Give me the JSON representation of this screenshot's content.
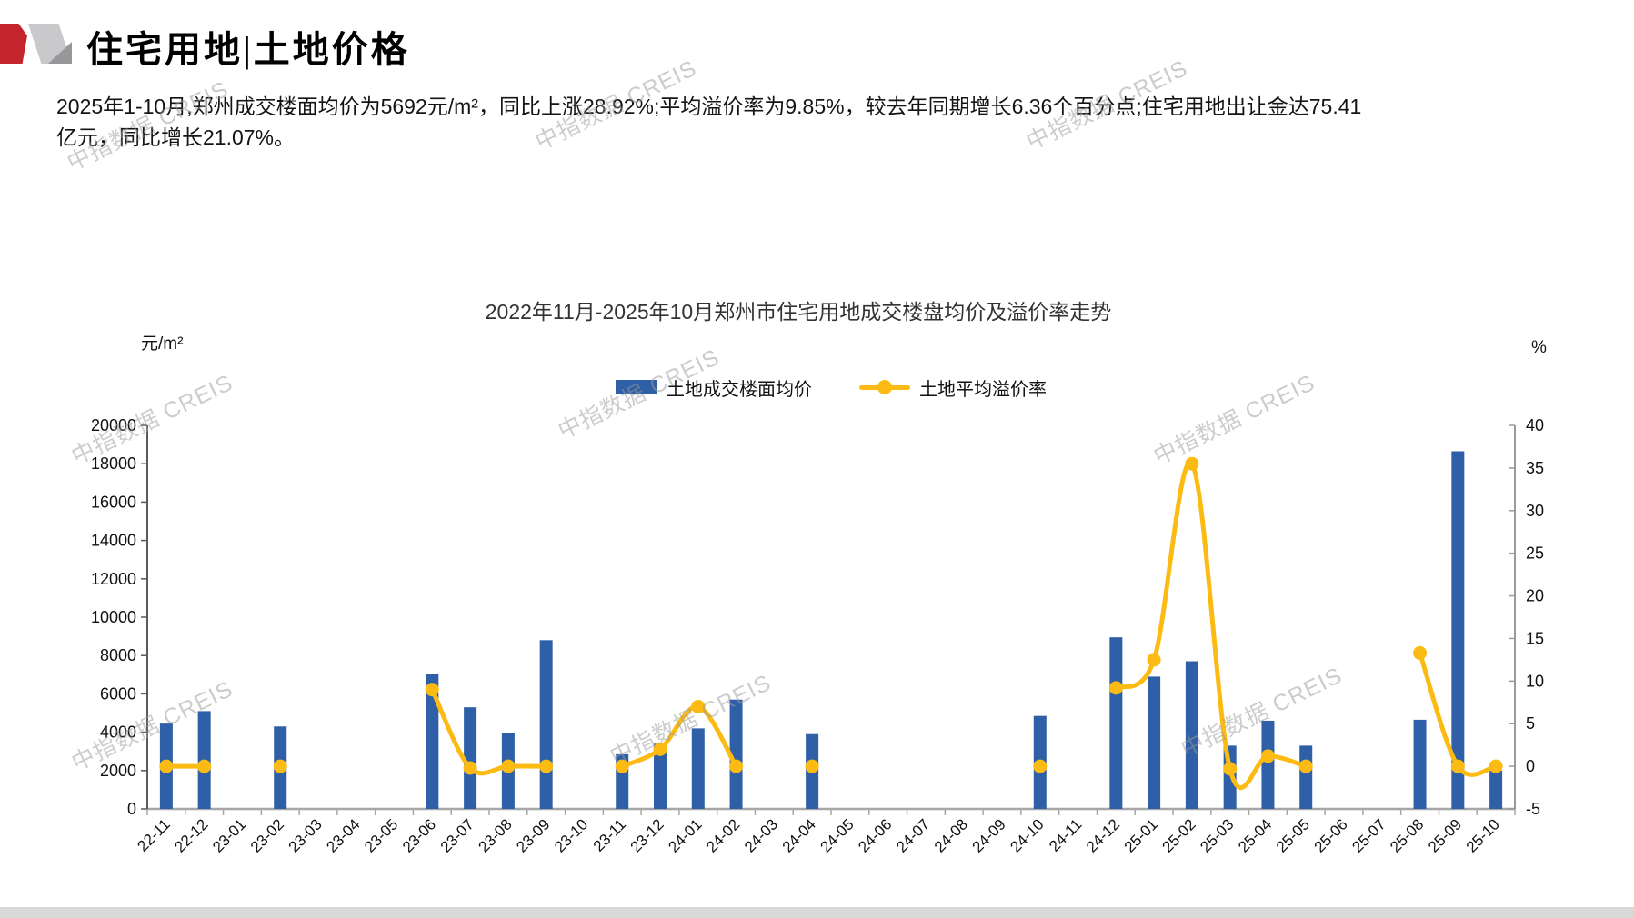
{
  "header": {
    "title": "住宅用地|土地价格"
  },
  "summary": "2025年1-10月,郑州成交楼面均价为5692元/m²，同比上涨28.92%;平均溢价率为9.85%，较去年同期增长6.36个百分点;住宅用地出让金达75.41亿元，同比增长21.07%。",
  "watermark": "中指数据 CREIS",
  "chart_data": {
    "type": "bar",
    "title": "2022年11月-2025年10月郑州市住宅用地成交楼盘均价及溢价率走势",
    "legend_position": "top-center",
    "grid": false,
    "left_axis": {
      "unit": "元/m²",
      "min": 0,
      "max": 20000,
      "step": 2000
    },
    "right_axis": {
      "unit": "%",
      "min": -5,
      "max": 40,
      "step": 5
    },
    "categories": [
      "22-11",
      "22-12",
      "23-01",
      "23-02",
      "23-03",
      "23-04",
      "23-05",
      "23-06",
      "23-07",
      "23-08",
      "23-09",
      "23-10",
      "23-11",
      "23-12",
      "24-01",
      "24-02",
      "24-03",
      "24-04",
      "24-05",
      "24-06",
      "24-07",
      "24-08",
      "24-09",
      "24-10",
      "24-11",
      "24-12",
      "25-01",
      "25-02",
      "25-03",
      "25-04",
      "25-05",
      "25-06",
      "25-07",
      "25-08",
      "25-09",
      "25-10"
    ],
    "series": [
      {
        "name": "土地成交楼面均价",
        "type": "bar",
        "axis": "left",
        "color": "#2f5fa7",
        "values": [
          4450,
          5100,
          null,
          4300,
          null,
          null,
          null,
          7050,
          5300,
          3950,
          8800,
          null,
          2850,
          3400,
          4200,
          5700,
          null,
          3900,
          null,
          null,
          null,
          null,
          null,
          4850,
          null,
          8950,
          6900,
          7700,
          3300,
          4600,
          3300,
          null,
          null,
          4650,
          18650,
          2000
        ]
      },
      {
        "name": "土地平均溢价率",
        "type": "line",
        "axis": "right",
        "color": "#fcbb12",
        "values": [
          0,
          0,
          null,
          0,
          null,
          null,
          null,
          9.0,
          -0.2,
          0,
          0,
          null,
          0,
          2.0,
          7.0,
          0,
          null,
          0,
          null,
          null,
          null,
          null,
          null,
          0,
          null,
          9.2,
          12.5,
          35.5,
          -0.3,
          1.2,
          0,
          null,
          null,
          13.3,
          0,
          0
        ]
      }
    ]
  }
}
